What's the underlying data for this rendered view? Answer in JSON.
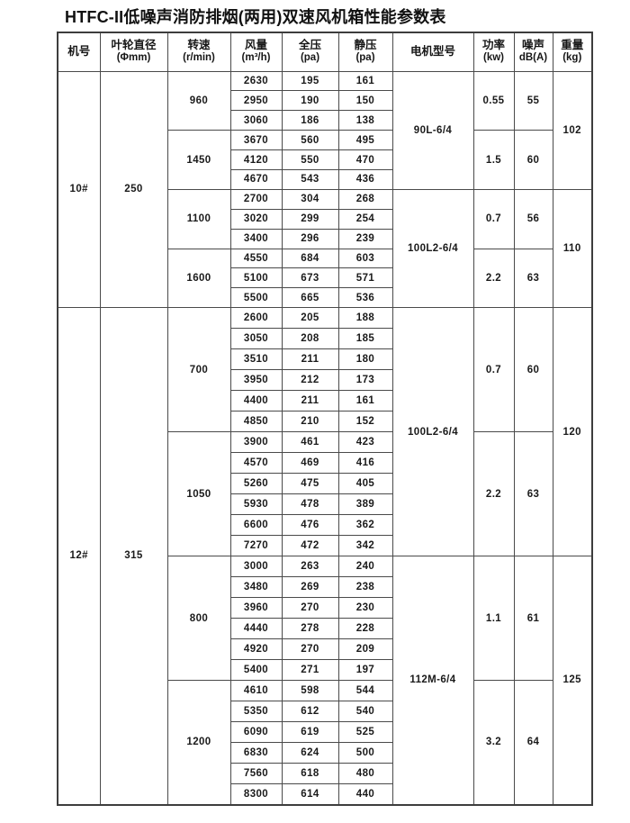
{
  "title": "HTFC-II低噪声消防排烟(两用)双速风机箱性能参数表",
  "colors": {
    "background": "#ffffff",
    "border": "#4a4a4a",
    "text": "#1a1a1a"
  },
  "table": {
    "headers": [
      {
        "line1": "机号",
        "line2": ""
      },
      {
        "line1": "叶轮直径",
        "line2": "(Φmm)"
      },
      {
        "line1": "转速",
        "line2": "(r/min)"
      },
      {
        "line1": "风量",
        "line2": "(m³/h)"
      },
      {
        "line1": "全压",
        "line2": "(pa)"
      },
      {
        "line1": "静压",
        "line2": "(pa)"
      },
      {
        "line1": "电机型号",
        "line2": ""
      },
      {
        "line1": "功率",
        "line2": "(kw)"
      },
      {
        "line1": "噪声",
        "line2": "dB(A)"
      },
      {
        "line1": "重量",
        "line2": "(kg)"
      }
    ],
    "sections": [
      {
        "model_no": "10#",
        "diameter": "250",
        "motor_groups": [
          {
            "motor": "90L-6/4",
            "weight": "102",
            "speed_groups": [
              {
                "speed": "960",
                "power": "0.55",
                "noise": "55",
                "rows": [
                  [
                    "2630",
                    "195",
                    "161"
                  ],
                  [
                    "2950",
                    "190",
                    "150"
                  ],
                  [
                    "3060",
                    "186",
                    "138"
                  ]
                ]
              },
              {
                "speed": "1450",
                "power": "1.5",
                "noise": "60",
                "rows": [
                  [
                    "3670",
                    "560",
                    "495"
                  ],
                  [
                    "4120",
                    "550",
                    "470"
                  ],
                  [
                    "4670",
                    "543",
                    "436"
                  ]
                ]
              }
            ]
          },
          {
            "motor": "100L2-6/4",
            "weight": "110",
            "speed_groups": [
              {
                "speed": "1100",
                "power": "0.7",
                "noise": "56",
                "rows": [
                  [
                    "2700",
                    "304",
                    "268"
                  ],
                  [
                    "3020",
                    "299",
                    "254"
                  ],
                  [
                    "3400",
                    "296",
                    "239"
                  ]
                ]
              },
              {
                "speed": "1600",
                "power": "2.2",
                "noise": "63",
                "rows": [
                  [
                    "4550",
                    "684",
                    "603"
                  ],
                  [
                    "5100",
                    "673",
                    "571"
                  ],
                  [
                    "5500",
                    "665",
                    "536"
                  ]
                ]
              }
            ]
          }
        ]
      },
      {
        "model_no": "12#",
        "diameter": "315",
        "motor_groups": [
          {
            "motor": "100L2-6/4",
            "weight": "120",
            "speed_groups": [
              {
                "speed": "700",
                "power": "0.7",
                "noise": "60",
                "rows": [
                  [
                    "2600",
                    "205",
                    "188"
                  ],
                  [
                    "3050",
                    "208",
                    "185"
                  ],
                  [
                    "3510",
                    "211",
                    "180"
                  ],
                  [
                    "3950",
                    "212",
                    "173"
                  ],
                  [
                    "4400",
                    "211",
                    "161"
                  ],
                  [
                    "4850",
                    "210",
                    "152"
                  ]
                ]
              },
              {
                "speed": "1050",
                "power": "2.2",
                "noise": "63",
                "rows": [
                  [
                    "3900",
                    "461",
                    "423"
                  ],
                  [
                    "4570",
                    "469",
                    "416"
                  ],
                  [
                    "5260",
                    "475",
                    "405"
                  ],
                  [
                    "5930",
                    "478",
                    "389"
                  ],
                  [
                    "6600",
                    "476",
                    "362"
                  ],
                  [
                    "7270",
                    "472",
                    "342"
                  ]
                ]
              }
            ]
          },
          {
            "motor": "112M-6/4",
            "weight": "125",
            "speed_groups": [
              {
                "speed": "800",
                "power": "1.1",
                "noise": "61",
                "rows": [
                  [
                    "3000",
                    "263",
                    "240"
                  ],
                  [
                    "3480",
                    "269",
                    "238"
                  ],
                  [
                    "3960",
                    "270",
                    "230"
                  ],
                  [
                    "4440",
                    "278",
                    "228"
                  ],
                  [
                    "4920",
                    "270",
                    "209"
                  ],
                  [
                    "5400",
                    "271",
                    "197"
                  ]
                ]
              },
              {
                "speed": "1200",
                "power": "3.2",
                "noise": "64",
                "rows": [
                  [
                    "4610",
                    "598",
                    "544"
                  ],
                  [
                    "5350",
                    "612",
                    "540"
                  ],
                  [
                    "6090",
                    "619",
                    "525"
                  ],
                  [
                    "6830",
                    "624",
                    "500"
                  ],
                  [
                    "7560",
                    "618",
                    "480"
                  ],
                  [
                    "8300",
                    "614",
                    "440"
                  ]
                ]
              }
            ]
          }
        ]
      }
    ]
  }
}
